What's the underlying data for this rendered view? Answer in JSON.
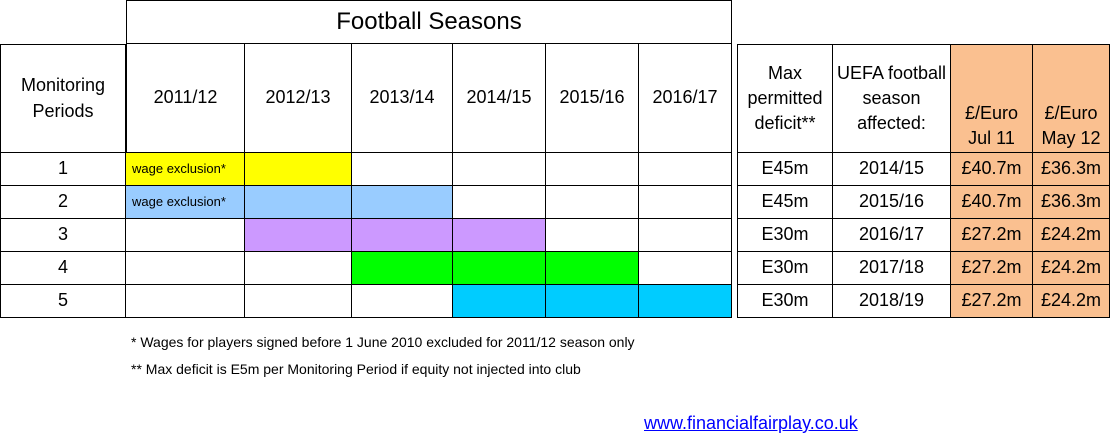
{
  "title": "Football Seasons",
  "headers": {
    "monitoring": "Monitoring Periods",
    "seasons": [
      "2011/12",
      "2012/13",
      "2013/14",
      "2014/15",
      "2015/16",
      "2016/17"
    ],
    "max_deficit": "Max permitted deficit**",
    "uefa": "UEFA football season affected:",
    "euro_jul": "£/Euro Jul 11",
    "euro_may": "£/Euro May 12"
  },
  "rows": [
    {
      "period": "1",
      "max": "E45m",
      "season": "2014/15",
      "jul": "£40.7m",
      "may": "£36.3m",
      "note": "wage exclusion*"
    },
    {
      "period": "2",
      "max": "E45m",
      "season": "2015/16",
      "jul": "£40.7m",
      "may": "£36.3m",
      "note": "wage exclusion*"
    },
    {
      "period": "3",
      "max": "E30m",
      "season": "2016/17",
      "jul": "£27.2m",
      "may": "£24.2m"
    },
    {
      "period": "4",
      "max": "E30m",
      "season": "2017/18",
      "jul": "£27.2m",
      "may": "£24.2m"
    },
    {
      "period": "5",
      "max": "E30m",
      "season": "2018/19",
      "jul": "£27.2m",
      "may": "£24.2m"
    }
  ],
  "colors": {
    "period_1": "#ffff00",
    "period_2": "#99ccff",
    "period_3": "#cc99ff",
    "period_4": "#00ff00",
    "period_5": "#00ccff",
    "exchange_rate": "#fac090"
  },
  "footnotes": [
    "* Wages for players signed before 1 June 2010 excluded for 2011/12 season only",
    "** Max deficit is E5m per Monitoring Period if equity not injected into club"
  ],
  "link": "www.financialfairplay.co.uk"
}
